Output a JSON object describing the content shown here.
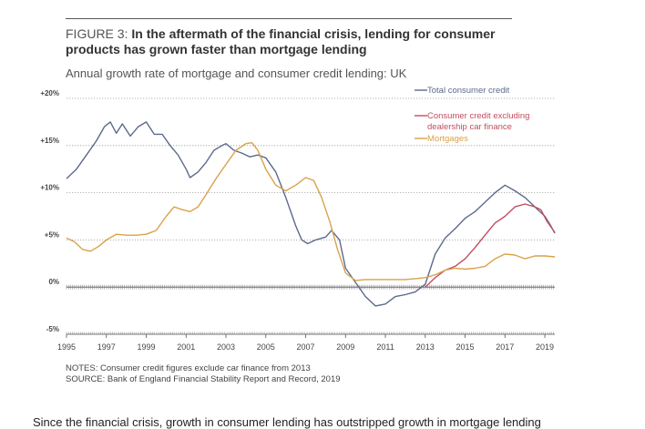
{
  "header": {
    "figure_label": "FIGURE 3:",
    "title_line1": "In the aftermath of the financial crisis, lending for consumer",
    "title_line2": "products has grown faster than mortgage lending",
    "subtitle": "Annual growth rate of mortgage and consumer credit lending: UK"
  },
  "footer": {
    "notes": "NOTES: Consumer credit figures exclude car finance from 2013",
    "source": "SOURCE: Bank of England Financial Stability Report and Record, 2019",
    "cutoff_text": "Since the financial crisis, growth in consumer lending has outstripped growth in mortgage lending"
  },
  "chart_data": {
    "type": "line",
    "title": "Annual growth rate of mortgage and consumer credit lending: UK",
    "xlabel": "",
    "ylabel": "",
    "xlim": [
      1995,
      2019.5
    ],
    "ylim": [
      -5,
      20
    ],
    "y_ticks": [
      -5,
      0,
      5,
      10,
      15,
      20
    ],
    "y_tick_labels": [
      "-5%",
      "0%",
      "+5%",
      "+10%",
      "+15%",
      "+20%"
    ],
    "x_ticks": [
      1995,
      1997,
      1999,
      2001,
      2003,
      2005,
      2007,
      2009,
      2011,
      2013,
      2015,
      2017,
      2019
    ],
    "x_tick_labels": [
      "1995",
      "1997",
      "1999",
      "2001",
      "2003",
      "2005",
      "2007",
      "2009",
      "2011",
      "2013",
      "2015",
      "2017",
      "2019"
    ],
    "grid": "dotted horizontal at each y tick",
    "legend_position": "top-right",
    "series": [
      {
        "name": "Total consumer credit",
        "color": "#5b6a8c",
        "points": [
          [
            1995.0,
            11.5
          ],
          [
            1995.5,
            12.5
          ],
          [
            1996.0,
            14.0
          ],
          [
            1996.5,
            15.5
          ],
          [
            1996.9,
            17.0
          ],
          [
            1997.2,
            17.5
          ],
          [
            1997.5,
            16.3
          ],
          [
            1997.8,
            17.3
          ],
          [
            1998.2,
            16.0
          ],
          [
            1998.6,
            17.0
          ],
          [
            1999.0,
            17.5
          ],
          [
            1999.4,
            16.2
          ],
          [
            1999.8,
            16.2
          ],
          [
            2000.2,
            15.0
          ],
          [
            2000.6,
            14.0
          ],
          [
            2001.0,
            12.5
          ],
          [
            2001.2,
            11.6
          ],
          [
            2001.6,
            12.2
          ],
          [
            2002.0,
            13.2
          ],
          [
            2002.4,
            14.5
          ],
          [
            2002.8,
            15.0
          ],
          [
            2003.0,
            15.2
          ],
          [
            2003.4,
            14.5
          ],
          [
            2003.8,
            14.2
          ],
          [
            2004.2,
            13.8
          ],
          [
            2004.6,
            14.0
          ],
          [
            2005.0,
            13.7
          ],
          [
            2005.5,
            12.2
          ],
          [
            2006.0,
            9.5
          ],
          [
            2006.5,
            6.5
          ],
          [
            2006.8,
            5.0
          ],
          [
            2007.1,
            4.6
          ],
          [
            2007.5,
            5.0
          ],
          [
            2008.0,
            5.3
          ],
          [
            2008.3,
            6.0
          ],
          [
            2008.7,
            5.0
          ],
          [
            2009.0,
            2.0
          ],
          [
            2009.5,
            0.5
          ],
          [
            2010.0,
            -1.0
          ],
          [
            2010.5,
            -2.0
          ],
          [
            2011.0,
            -1.8
          ],
          [
            2011.5,
            -1.0
          ],
          [
            2012.0,
            -0.8
          ],
          [
            2012.5,
            -0.5
          ],
          [
            2013.0,
            0.3
          ],
          [
            2013.5,
            3.5
          ],
          [
            2014.0,
            5.2
          ],
          [
            2014.5,
            6.2
          ],
          [
            2015.0,
            7.3
          ],
          [
            2015.5,
            8.0
          ],
          [
            2016.0,
            9.0
          ],
          [
            2016.5,
            10.0
          ],
          [
            2017.0,
            10.8
          ],
          [
            2017.5,
            10.2
          ],
          [
            2018.0,
            9.5
          ],
          [
            2018.5,
            8.5
          ],
          [
            2019.0,
            7.5
          ],
          [
            2019.3,
            6.5
          ],
          [
            2019.5,
            5.7
          ]
        ]
      },
      {
        "name": "Consumer credit excluding dealership car finance",
        "color": "#c44d5e",
        "points": [
          [
            2013.0,
            0.0
          ],
          [
            2013.5,
            1.0
          ],
          [
            2014.0,
            1.8
          ],
          [
            2014.5,
            2.2
          ],
          [
            2015.0,
            3.0
          ],
          [
            2015.5,
            4.2
          ],
          [
            2016.0,
            5.5
          ],
          [
            2016.5,
            6.8
          ],
          [
            2017.0,
            7.5
          ],
          [
            2017.5,
            8.5
          ],
          [
            2018.0,
            8.8
          ],
          [
            2018.5,
            8.5
          ],
          [
            2018.8,
            8.2
          ],
          [
            2019.1,
            7.0
          ],
          [
            2019.5,
            5.8
          ]
        ]
      },
      {
        "name": "Mortgages",
        "color": "#d9a24a",
        "points": [
          [
            1995.0,
            5.2
          ],
          [
            1995.4,
            4.8
          ],
          [
            1995.8,
            4.0
          ],
          [
            1996.2,
            3.8
          ],
          [
            1996.6,
            4.3
          ],
          [
            1997.0,
            5.0
          ],
          [
            1997.5,
            5.6
          ],
          [
            1998.0,
            5.5
          ],
          [
            1998.5,
            5.5
          ],
          [
            1999.0,
            5.6
          ],
          [
            1999.5,
            6.0
          ],
          [
            2000.0,
            7.5
          ],
          [
            2000.4,
            8.5
          ],
          [
            2000.8,
            8.2
          ],
          [
            2001.2,
            8.0
          ],
          [
            2001.6,
            8.5
          ],
          [
            2002.0,
            9.8
          ],
          [
            2002.5,
            11.5
          ],
          [
            2003.0,
            13.0
          ],
          [
            2003.5,
            14.5
          ],
          [
            2004.0,
            15.2
          ],
          [
            2004.3,
            15.3
          ],
          [
            2004.6,
            14.5
          ],
          [
            2005.0,
            12.5
          ],
          [
            2005.5,
            10.8
          ],
          [
            2006.0,
            10.2
          ],
          [
            2006.5,
            10.8
          ],
          [
            2007.0,
            11.6
          ],
          [
            2007.4,
            11.3
          ],
          [
            2007.8,
            9.5
          ],
          [
            2008.2,
            7.0
          ],
          [
            2008.6,
            4.0
          ],
          [
            2009.0,
            1.5
          ],
          [
            2009.5,
            0.7
          ],
          [
            2010.0,
            0.8
          ],
          [
            2010.5,
            0.8
          ],
          [
            2011.0,
            0.8
          ],
          [
            2011.5,
            0.8
          ],
          [
            2012.0,
            0.8
          ],
          [
            2012.5,
            0.9
          ],
          [
            2013.0,
            1.0
          ],
          [
            2013.5,
            1.3
          ],
          [
            2014.0,
            1.8
          ],
          [
            2014.5,
            2.0
          ],
          [
            2015.0,
            1.9
          ],
          [
            2015.5,
            2.0
          ],
          [
            2016.0,
            2.2
          ],
          [
            2016.5,
            3.0
          ],
          [
            2017.0,
            3.5
          ],
          [
            2017.5,
            3.4
          ],
          [
            2018.0,
            3.0
          ],
          [
            2018.5,
            3.3
          ],
          [
            2019.0,
            3.3
          ],
          [
            2019.5,
            3.2
          ]
        ]
      }
    ],
    "legend": [
      {
        "text": "Total consumer credit",
        "color": "#5b6a8c"
      },
      {
        "text": "Consumer credit excluding\ndealership car finance",
        "color": "#c44d5e"
      },
      {
        "text": "Mortgages",
        "color": "#d9a24a"
      }
    ]
  }
}
